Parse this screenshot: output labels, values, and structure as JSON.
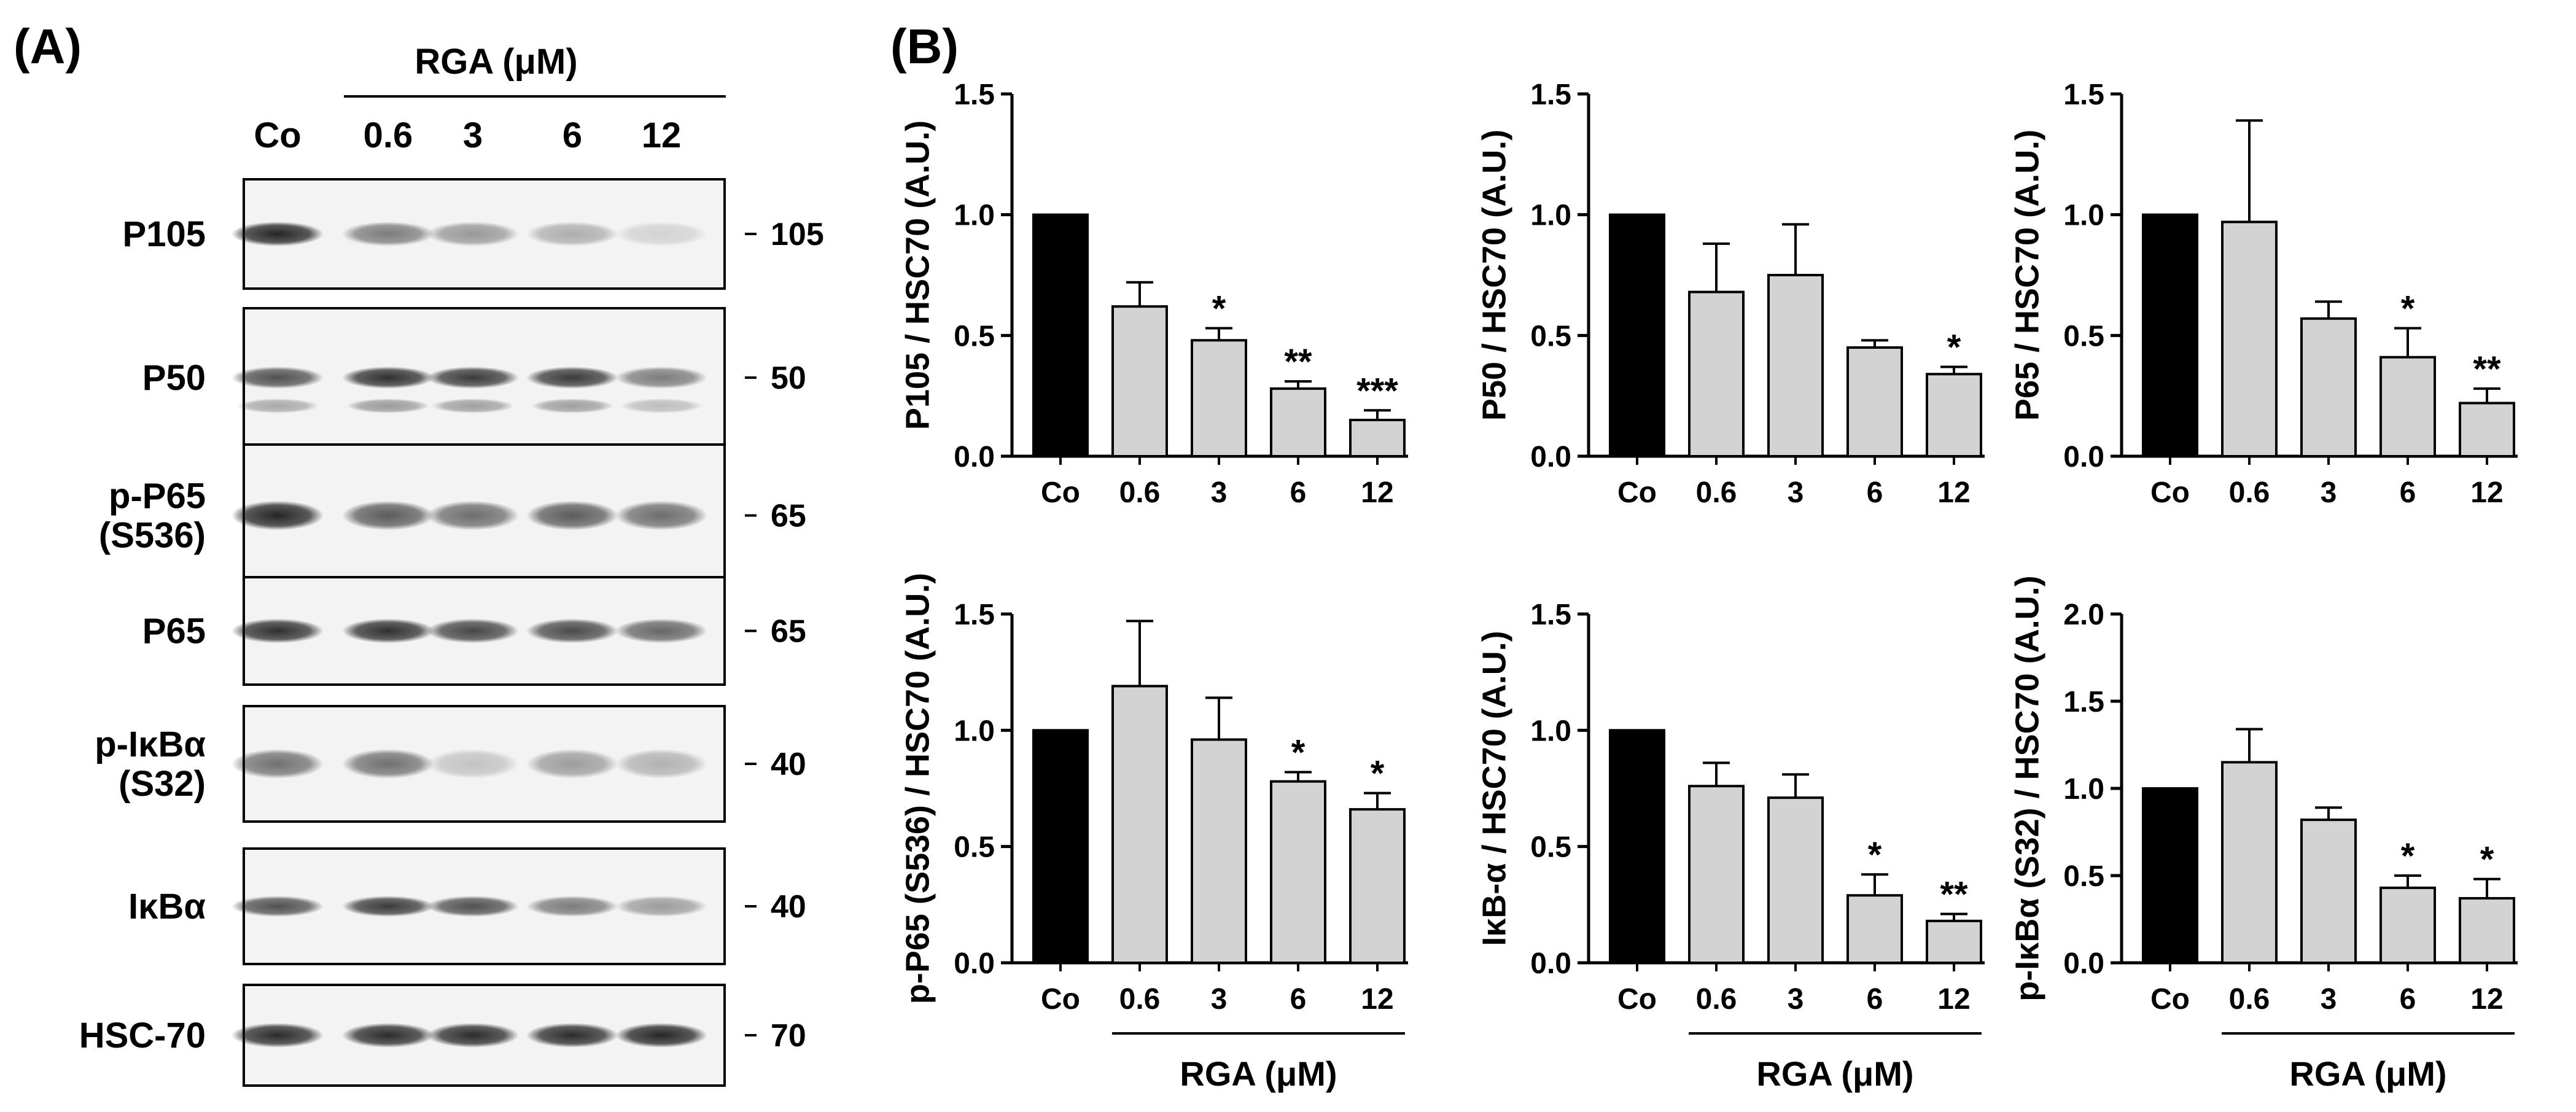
{
  "panel_a": {
    "label": "(A)",
    "header_title": "RGA  (μM)",
    "lanes": [
      "Co",
      "0.6",
      "3",
      "6",
      "12"
    ],
    "lane_colors": {
      "background": "#f3f3f3",
      "band": "#1a1a1a"
    },
    "blots": [
      {
        "name": "P105",
        "name_lines": [
          "P105"
        ],
        "marker": "105",
        "intensities": [
          0.95,
          0.55,
          0.42,
          0.32,
          0.15
        ]
      },
      {
        "name": "P50",
        "name_lines": [
          "P50"
        ],
        "marker": "50",
        "intensities": [
          0.75,
          0.9,
          0.85,
          0.85,
          0.55
        ]
      },
      {
        "name": "p-P65 (S536)",
        "name_lines": [
          "p-P65",
          "(S536)"
        ],
        "marker": "65",
        "intensities": [
          0.95,
          0.7,
          0.62,
          0.7,
          0.62
        ]
      },
      {
        "name": "P65",
        "name_lines": [
          "P65"
        ],
        "marker": "65",
        "intensities": [
          0.9,
          0.9,
          0.8,
          0.78,
          0.65
        ]
      },
      {
        "name": "p-IκBα (S32)",
        "name_lines": [
          "p-IκBα",
          "(S32)"
        ],
        "marker": "40",
        "intensities": [
          0.6,
          0.6,
          0.22,
          0.4,
          0.3
        ]
      },
      {
        "name": "IκBα",
        "name_lines": [
          "IκBα"
        ],
        "marker": "40",
        "intensities": [
          0.75,
          0.85,
          0.75,
          0.55,
          0.4
        ]
      },
      {
        "name": "HSC-70",
        "name_lines": [
          "HSC-70"
        ],
        "marker": "70",
        "intensities": [
          0.92,
          0.92,
          0.92,
          0.92,
          0.95
        ]
      }
    ]
  },
  "panel_b": {
    "label": "(B)"
  },
  "chart_data": [
    {
      "type": "bar",
      "ylabel": "P105 / HSC70 (A.U.)",
      "categories": [
        "Co",
        "0.6",
        "3",
        "6",
        "12"
      ],
      "values": [
        1.0,
        0.62,
        0.48,
        0.28,
        0.15
      ],
      "errors": [
        0,
        0.1,
        0.05,
        0.03,
        0.04
      ],
      "significance": [
        "",
        "",
        "*",
        "**",
        "***"
      ],
      "ylim": [
        0,
        1.5
      ],
      "yticks": [
        "0.0",
        "0.5",
        "1.0",
        "1.5"
      ],
      "group_label": "",
      "bar_colors": [
        "#000000",
        "#d3d3d3"
      ]
    },
    {
      "type": "bar",
      "ylabel": "P50 / HSC70 (A.U.)",
      "categories": [
        "Co",
        "0.6",
        "3",
        "6",
        "12"
      ],
      "values": [
        1.0,
        0.68,
        0.75,
        0.45,
        0.34
      ],
      "errors": [
        0,
        0.2,
        0.21,
        0.03,
        0.03
      ],
      "significance": [
        "",
        "",
        "",
        "",
        "*"
      ],
      "ylim": [
        0,
        1.5
      ],
      "yticks": [
        "0.0",
        "0.5",
        "1.0",
        "1.5"
      ],
      "group_label": "",
      "bar_colors": [
        "#000000",
        "#d3d3d3"
      ]
    },
    {
      "type": "bar",
      "ylabel": "P65 / HSC70 (A.U.)",
      "categories": [
        "Co",
        "0.6",
        "3",
        "6",
        "12"
      ],
      "values": [
        1.0,
        0.97,
        0.57,
        0.41,
        0.22
      ],
      "errors": [
        0,
        0.42,
        0.07,
        0.12,
        0.06
      ],
      "significance": [
        "",
        "",
        "",
        "*",
        "**"
      ],
      "ylim": [
        0,
        1.5
      ],
      "yticks": [
        "0.0",
        "0.5",
        "1.0",
        "1.5"
      ],
      "group_label": "",
      "bar_colors": [
        "#000000",
        "#d3d3d3"
      ]
    },
    {
      "type": "bar",
      "ylabel": "p-P65 (S536) / HSC70 (A.U.)",
      "categories": [
        "Co",
        "0.6",
        "3",
        "6",
        "12"
      ],
      "values": [
        1.0,
        1.19,
        0.96,
        0.78,
        0.66
      ],
      "errors": [
        0,
        0.28,
        0.18,
        0.04,
        0.07
      ],
      "significance": [
        "",
        "",
        "",
        "*",
        "*"
      ],
      "ylim": [
        0,
        1.5
      ],
      "yticks": [
        "0.0",
        "0.5",
        "1.0",
        "1.5"
      ],
      "group_label": "RGA  (μM)",
      "bar_colors": [
        "#000000",
        "#d3d3d3"
      ]
    },
    {
      "type": "bar",
      "ylabel": "IκB-α / HSC70 (A.U.)",
      "categories": [
        "Co",
        "0.6",
        "3",
        "6",
        "12"
      ],
      "values": [
        1.0,
        0.76,
        0.71,
        0.29,
        0.18
      ],
      "errors": [
        0,
        0.1,
        0.1,
        0.09,
        0.03
      ],
      "significance": [
        "",
        "",
        "",
        "*",
        "**"
      ],
      "ylim": [
        0,
        1.5
      ],
      "yticks": [
        "0.0",
        "0.5",
        "1.0",
        "1.5"
      ],
      "group_label": "RGA  (μM)",
      "bar_colors": [
        "#000000",
        "#d3d3d3"
      ]
    },
    {
      "type": "bar",
      "ylabel": "p-IκBα (S32) / HSC70 (A.U.)",
      "categories": [
        "Co",
        "0.6",
        "3",
        "6",
        "12"
      ],
      "values": [
        1.0,
        1.15,
        0.82,
        0.43,
        0.37
      ],
      "errors": [
        0,
        0.19,
        0.07,
        0.07,
        0.11
      ],
      "significance": [
        "",
        "",
        "",
        "*",
        "*"
      ],
      "ylim": [
        0,
        2.0
      ],
      "yticks": [
        "0.0",
        "0.5",
        "1.0",
        "1.5",
        "2.0"
      ],
      "group_label": "RGA  (μM)",
      "bar_colors": [
        "#000000",
        "#d3d3d3"
      ]
    }
  ]
}
